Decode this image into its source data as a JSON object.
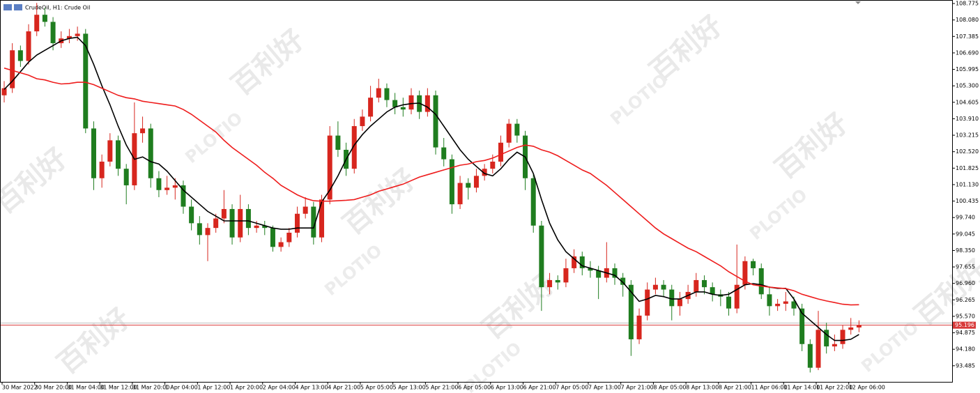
{
  "chart_data": {
    "type": "candlestick",
    "title": "CrudeOil, H1:  Crude Oil",
    "watermark": [
      "百利好",
      "PLOTIO"
    ],
    "up_color": "#d7261e",
    "down_color": "#1f7d1f",
    "categories": [
      "30 Mar 2022",
      null,
      null,
      null,
      "30 Mar 20:00",
      null,
      null,
      null,
      "31 Mar 04:00",
      null,
      null,
      null,
      "31 Mar 12:00",
      null,
      null,
      null,
      "31 Mar 20:00",
      null,
      null,
      null,
      "1 Apr 04:00",
      null,
      null,
      null,
      "1 Apr 12:00",
      null,
      null,
      null,
      "1 Apr 20:00",
      null,
      null,
      null,
      "2 Apr 04:00",
      null,
      null,
      null,
      "4 Apr 13:00",
      null,
      null,
      null,
      "4 Apr 21:00",
      null,
      null,
      null,
      "5 Apr 05:00",
      null,
      null,
      null,
      "5 Apr 13:00",
      null,
      null,
      null,
      "5 Apr 21:00",
      null,
      null,
      null,
      "6 Apr 05:00",
      null,
      null,
      null,
      "6 Apr 13:00",
      null,
      null,
      null,
      "6 Apr 21:00",
      null,
      null,
      null,
      "7 Apr 05:00",
      null,
      null,
      null,
      "7 Apr 13:00",
      null,
      null,
      null,
      "7 Apr 21:00",
      null,
      null,
      null,
      "8 Apr 05:00",
      null,
      null,
      null,
      "8 Apr 13:00",
      null,
      null,
      null,
      "8 Apr 21:00",
      null,
      null,
      null,
      "11 Apr 06:00",
      null,
      null,
      null,
      "11 Apr 14:00",
      null,
      null,
      null,
      "11 Apr 22:00",
      null,
      null,
      null,
      "12 Apr 06:00",
      null
    ],
    "open": [
      104.9,
      105.2,
      106.8,
      106.35,
      107.6,
      108.3,
      108.0,
      107.1,
      107.3,
      107.4,
      107.5,
      103.5,
      101.4,
      102.1,
      103.0,
      101.8,
      101.1,
      103.3,
      103.5,
      101.4,
      100.9,
      101.0,
      101.1,
      100.2,
      99.5,
      99.0,
      99.3,
      99.7,
      100.1,
      98.9,
      100.1,
      99.3,
      99.4,
      99.3,
      98.5,
      98.7,
      99.1,
      99.9,
      100.2,
      98.9,
      100.5,
      103.2,
      102.6,
      101.8,
      103.6,
      104.0,
      104.8,
      105.2,
      104.7,
      104.4,
      104.3,
      104.9,
      104.2,
      104.9,
      102.7,
      102.2,
      100.3,
      101.2,
      101.0,
      101.5,
      101.8,
      102.1,
      102.9,
      103.7,
      103.2,
      101.4,
      99.4,
      96.8,
      97.1,
      97.0,
      97.6,
      98.1,
      97.6,
      97.5,
      97.2,
      97.6,
      97.2,
      96.9,
      94.6,
      95.6,
      96.7,
      96.9,
      96.7,
      96.0,
      96.3,
      96.6,
      97.1,
      96.8,
      96.5,
      96.4,
      95.9,
      96.9,
      97.9,
      97.6,
      96.5,
      96.0,
      96.1,
      96.2,
      95.9,
      94.4,
      93.4,
      95.0,
      94.3,
      94.4,
      95.0,
      95.1
    ],
    "high": [
      105.5,
      107.1,
      107.0,
      107.9,
      108.8,
      108.6,
      108.2,
      107.6,
      107.7,
      107.8,
      107.7,
      103.8,
      102.4,
      103.3,
      103.2,
      102.0,
      104.6,
      104.0,
      103.7,
      101.7,
      101.5,
      101.4,
      101.3,
      100.5,
      99.8,
      99.5,
      99.9,
      100.9,
      100.3,
      100.7,
      100.3,
      99.6,
      99.6,
      99.4,
      98.9,
      99.3,
      100.2,
      100.6,
      100.4,
      100.7,
      103.6,
      103.8,
      102.9,
      103.9,
      104.3,
      105.3,
      105.6,
      105.4,
      105.0,
      104.8,
      105.2,
      105.1,
      105.2,
      105.1,
      103.1,
      102.4,
      101.5,
      101.4,
      101.8,
      102.0,
      102.4,
      103.2,
      103.9,
      103.9,
      103.4,
      101.6,
      99.6,
      97.4,
      97.3,
      98.0,
      98.4,
      98.3,
      97.9,
      97.7,
      98.7,
      97.8,
      97.4,
      97.1,
      95.9,
      97.0,
      97.2,
      97.1,
      96.9,
      96.6,
      96.9,
      97.4,
      97.3,
      97.0,
      96.7,
      96.6,
      98.6,
      98.1,
      98.0,
      97.8,
      96.8,
      96.3,
      96.6,
      96.4,
      96.1,
      94.6,
      95.8,
      95.3,
      94.8,
      95.2,
      95.5,
      95.4
    ],
    "low": [
      104.6,
      105.0,
      106.1,
      106.2,
      107.4,
      107.8,
      106.8,
      106.9,
      107.1,
      107.2,
      103.3,
      100.9,
      101.0,
      101.9,
      101.5,
      100.3,
      100.9,
      102.9,
      101.0,
      100.6,
      100.7,
      100.5,
      99.9,
      99.2,
      98.6,
      97.9,
      99.1,
      99.5,
      98.6,
      98.7,
      99.0,
      99.1,
      99.0,
      98.3,
      98.3,
      98.5,
      98.9,
      99.7,
      98.6,
      98.7,
      100.3,
      102.3,
      101.5,
      101.6,
      103.4,
      103.8,
      104.6,
      104.4,
      104.1,
      104.0,
      104.1,
      103.9,
      104.0,
      102.4,
      101.9,
      99.9,
      100.1,
      100.5,
      100.8,
      101.3,
      101.6,
      101.9,
      102.7,
      102.9,
      100.9,
      99.1,
      95.8,
      96.5,
      96.7,
      96.8,
      97.4,
      97.3,
      97.2,
      96.3,
      97.0,
      96.9,
      96.4,
      93.9,
      94.4,
      95.4,
      96.5,
      96.4,
      95.4,
      95.6,
      96.1,
      96.4,
      96.5,
      96.2,
      96.0,
      95.6,
      95.7,
      96.7,
      97.3,
      96.3,
      95.6,
      95.8,
      95.8,
      95.6,
      94.1,
      93.2,
      93.3,
      94.0,
      94.1,
      94.2,
      94.8,
      94.9
    ],
    "close": [
      105.2,
      106.8,
      106.35,
      107.6,
      108.3,
      108.0,
      107.1,
      107.3,
      107.4,
      107.5,
      103.5,
      101.4,
      102.1,
      103.0,
      101.8,
      101.1,
      103.3,
      103.5,
      101.4,
      100.9,
      101.0,
      101.1,
      100.2,
      99.5,
      99.0,
      99.3,
      99.7,
      100.1,
      98.9,
      100.1,
      99.3,
      99.4,
      99.3,
      98.5,
      98.7,
      99.1,
      99.9,
      100.2,
      98.9,
      100.5,
      103.2,
      102.6,
      101.8,
      103.6,
      104.0,
      104.8,
      105.2,
      104.7,
      104.4,
      104.3,
      104.9,
      104.2,
      104.9,
      102.7,
      102.2,
      100.3,
      101.2,
      101.0,
      101.5,
      101.8,
      102.1,
      102.9,
      103.7,
      103.2,
      101.4,
      99.4,
      96.8,
      97.1,
      97.0,
      97.6,
      98.1,
      97.6,
      97.5,
      97.2,
      97.6,
      97.2,
      96.9,
      94.6,
      95.6,
      96.7,
      96.9,
      96.7,
      96.0,
      96.3,
      96.6,
      97.1,
      96.8,
      96.5,
      96.4,
      95.9,
      96.9,
      97.9,
      97.6,
      96.5,
      96.0,
      96.1,
      96.2,
      95.9,
      94.4,
      93.4,
      95.0,
      94.3,
      94.4,
      95.0,
      95.1,
      95.2
    ],
    "series": [
      {
        "color": "#000000",
        "values": [
          105.15,
          105.5,
          105.9,
          106.3,
          106.6,
          106.8,
          107.0,
          107.2,
          107.3,
          107.35,
          107.0,
          106.2,
          105.3,
          104.5,
          103.6,
          102.8,
          102.2,
          102.3,
          102.1,
          102.0,
          101.7,
          101.3,
          100.9,
          100.6,
          100.3,
          100.0,
          99.8,
          99.6,
          99.6,
          99.6,
          99.6,
          99.5,
          99.4,
          99.3,
          99.25,
          99.25,
          99.3,
          99.3,
          99.3,
          100.4,
          100.9,
          101.5,
          102.2,
          102.8,
          103.24,
          103.6,
          103.9,
          104.2,
          104.4,
          104.5,
          104.55,
          104.57,
          104.4,
          104.1,
          103.6,
          103.1,
          102.6,
          102.2,
          101.9,
          101.6,
          101.5,
          101.8,
          102.2,
          102.5,
          102.3,
          101.6,
          100.5,
          99.5,
          98.8,
          98.3,
          98.0,
          97.7,
          97.6,
          97.5,
          97.4,
          97.3,
          97.0,
          96.6,
          96.2,
          96.3,
          96.45,
          96.4,
          96.3,
          96.3,
          96.45,
          96.6,
          96.6,
          96.5,
          96.45,
          96.5,
          96.7,
          96.9,
          96.95,
          96.9,
          96.8,
          96.75,
          96.75,
          96.3,
          95.7,
          95.4,
          95.1,
          94.8,
          94.55,
          94.55,
          94.6,
          94.8
        ]
      },
      {
        "color": "#ee1c1c",
        "values": [
          106.05,
          105.95,
          105.85,
          105.75,
          105.6,
          105.55,
          105.45,
          105.38,
          105.4,
          105.45,
          105.45,
          105.35,
          105.2,
          105.05,
          104.9,
          104.8,
          104.75,
          104.65,
          104.6,
          104.55,
          104.5,
          104.45,
          104.3,
          104.1,
          103.85,
          103.6,
          103.35,
          103.0,
          102.7,
          102.45,
          102.2,
          101.95,
          101.65,
          101.4,
          101.1,
          100.9,
          100.7,
          100.55,
          100.45,
          100.43,
          100.43,
          100.45,
          100.47,
          100.5,
          100.6,
          100.7,
          100.85,
          100.95,
          101.05,
          101.15,
          101.3,
          101.45,
          101.55,
          101.65,
          101.75,
          101.85,
          101.95,
          102.0,
          102.1,
          102.15,
          102.25,
          102.4,
          102.55,
          102.7,
          102.8,
          102.75,
          102.6,
          102.5,
          102.35,
          102.15,
          101.95,
          101.75,
          101.6,
          101.35,
          101.1,
          100.8,
          100.5,
          100.2,
          99.9,
          99.6,
          99.3,
          99.05,
          98.85,
          98.65,
          98.45,
          98.3,
          98.1,
          97.9,
          97.7,
          97.45,
          97.25,
          97.05,
          96.9,
          96.85,
          96.8,
          96.77,
          96.74,
          96.65,
          96.5,
          96.4,
          96.3,
          96.22,
          96.15,
          96.08,
          96.05,
          96.06
        ]
      }
    ],
    "last_price": 95.196,
    "last_price_color": "#d83a3a",
    "ylim": [
      92.804,
      108.923
    ],
    "yticks": [
      108.775,
      {
        "value": 108.08,
        "label": "108.080"
      },
      107.385,
      {
        "value": 106.69,
        "label": "106.690"
      },
      105.995,
      {
        "value": 105.3,
        "label": "105.300"
      },
      104.605,
      {
        "value": 103.91,
        "label": "103.910"
      },
      103.215,
      {
        "value": 102.52,
        "label": "102.520"
      },
      101.825,
      {
        "value": 101.13,
        "label": "101.130"
      },
      100.435,
      {
        "value": 99.74,
        "label": "99.740"
      },
      99.045,
      {
        "value": 98.35,
        "label": "98.350"
      },
      97.655,
      {
        "value": 96.96,
        "label": "96.960"
      },
      96.265,
      {
        "value": 95.57,
        "label": "95.570"
      },
      94.875,
      {
        "value": 94.18,
        "label": "94.180"
      },
      93.485
    ]
  }
}
